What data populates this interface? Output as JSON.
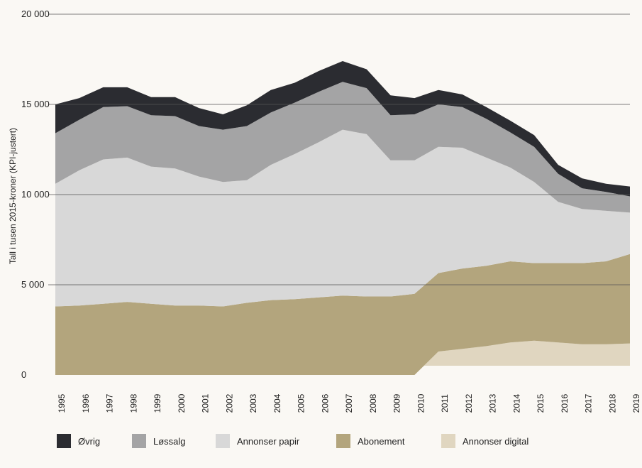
{
  "chart_data": {
    "type": "area",
    "stacked": true,
    "xlabel": "",
    "ylabel": "Tall i tusen 2015-kroner (KPI-justert)",
    "ylim": [
      0,
      20000
    ],
    "y_ticks": [
      0,
      5000,
      10000,
      15000,
      20000
    ],
    "y_tick_labels": [
      "0",
      "5 000",
      "10 000",
      "15 000",
      "20 000"
    ],
    "grid": "horizontal",
    "legend_position": "bottom",
    "x": [
      "1995",
      "1996",
      "1997",
      "1998",
      "1999",
      "2000",
      "2001",
      "2002",
      "2003",
      "2004",
      "2005",
      "2006",
      "2007",
      "2008",
      "2009",
      "2010",
      "2011",
      "2012",
      "2013",
      "2014",
      "2015",
      "2016",
      "2017",
      "2018",
      "2019"
    ],
    "series": [
      {
        "name": "Annonser digital",
        "color": "#e0d6c0",
        "values": [
          0,
          0,
          0,
          0,
          0,
          0,
          0,
          0,
          0,
          0,
          0,
          0,
          0,
          0,
          0,
          0,
          1300,
          1450,
          1600,
          1800,
          1900,
          1800,
          1700,
          1700,
          1750
        ]
      },
      {
        "name": "Abonement",
        "color": "#b3a57d",
        "values": [
          3800,
          3850,
          3950,
          4050,
          3950,
          3850,
          3850,
          3800,
          4000,
          4150,
          4200,
          4300,
          4400,
          4350,
          4350,
          4500,
          4350,
          4450,
          4450,
          4500,
          4300,
          4400,
          4500,
          4600,
          4950
        ]
      },
      {
        "name": "Annonser papir",
        "color": "#d8d8d8",
        "values": [
          6800,
          7500,
          8000,
          8000,
          7600,
          7600,
          7150,
          6900,
          6800,
          7500,
          8050,
          8600,
          9200,
          9000,
          7550,
          7400,
          7000,
          6700,
          6000,
          5200,
          4500,
          3400,
          3000,
          2800,
          2300
        ]
      },
      {
        "name": "Løssalg",
        "color": "#a4a4a5",
        "values": [
          2800,
          2800,
          2900,
          2850,
          2850,
          2900,
          2800,
          2900,
          3000,
          2900,
          2850,
          2800,
          2650,
          2550,
          2500,
          2550,
          2350,
          2250,
          2150,
          1950,
          1950,
          1550,
          1150,
          1050,
          900
        ]
      },
      {
        "name": "Øvrig",
        "color": "#2b2c31",
        "values": [
          1600,
          1200,
          1100,
          1050,
          1000,
          1050,
          1000,
          850,
          1150,
          1250,
          1100,
          1150,
          1150,
          1050,
          1100,
          900,
          800,
          700,
          650,
          650,
          650,
          500,
          550,
          450,
          550
        ]
      }
    ]
  },
  "legend": [
    {
      "label": "Øvrig",
      "color": "#2b2c31"
    },
    {
      "label": "Løssalg",
      "color": "#a4a4a5"
    },
    {
      "label": "Annonser papir",
      "color": "#d8d8d8"
    },
    {
      "label": "Abonement",
      "color": "#b3a57d"
    },
    {
      "label": "Annonser digital",
      "color": "#e0d6c0"
    }
  ]
}
